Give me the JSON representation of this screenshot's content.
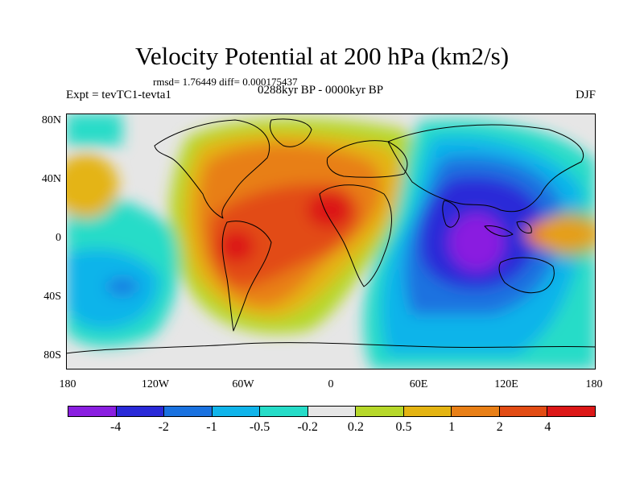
{
  "title": "Velocity Potential at 200 hPa (km2/s)",
  "stats": "rmsd= 1.76449 diff= 0.000175437",
  "experiment": "Expt = tevTC1-tevta1",
  "period": "0288kyr BP - 0000kyr BP",
  "season": "DJF",
  "map": {
    "lat_ticks": [
      "80N",
      "40N",
      "0",
      "40S",
      "80S"
    ],
    "lon_ticks": [
      "180",
      "120W",
      "60W",
      "0",
      "60E",
      "120E",
      "180"
    ],
    "lat_range": [
      -90,
      90
    ],
    "lon_range": [
      -180,
      180
    ]
  },
  "colorbar": {
    "colors": [
      "#8a1fe0",
      "#2a2ad8",
      "#1a72e0",
      "#10b4ea",
      "#26dcc8",
      "#e6e6e6",
      "#b6d82a",
      "#e4b412",
      "#e87f16",
      "#e24c14",
      "#dc1818"
    ],
    "labels": [
      "-4",
      "-2",
      "-1",
      "-0.5",
      "-0.2",
      "0.2",
      "0.5",
      "1",
      "2",
      "4"
    ]
  }
}
